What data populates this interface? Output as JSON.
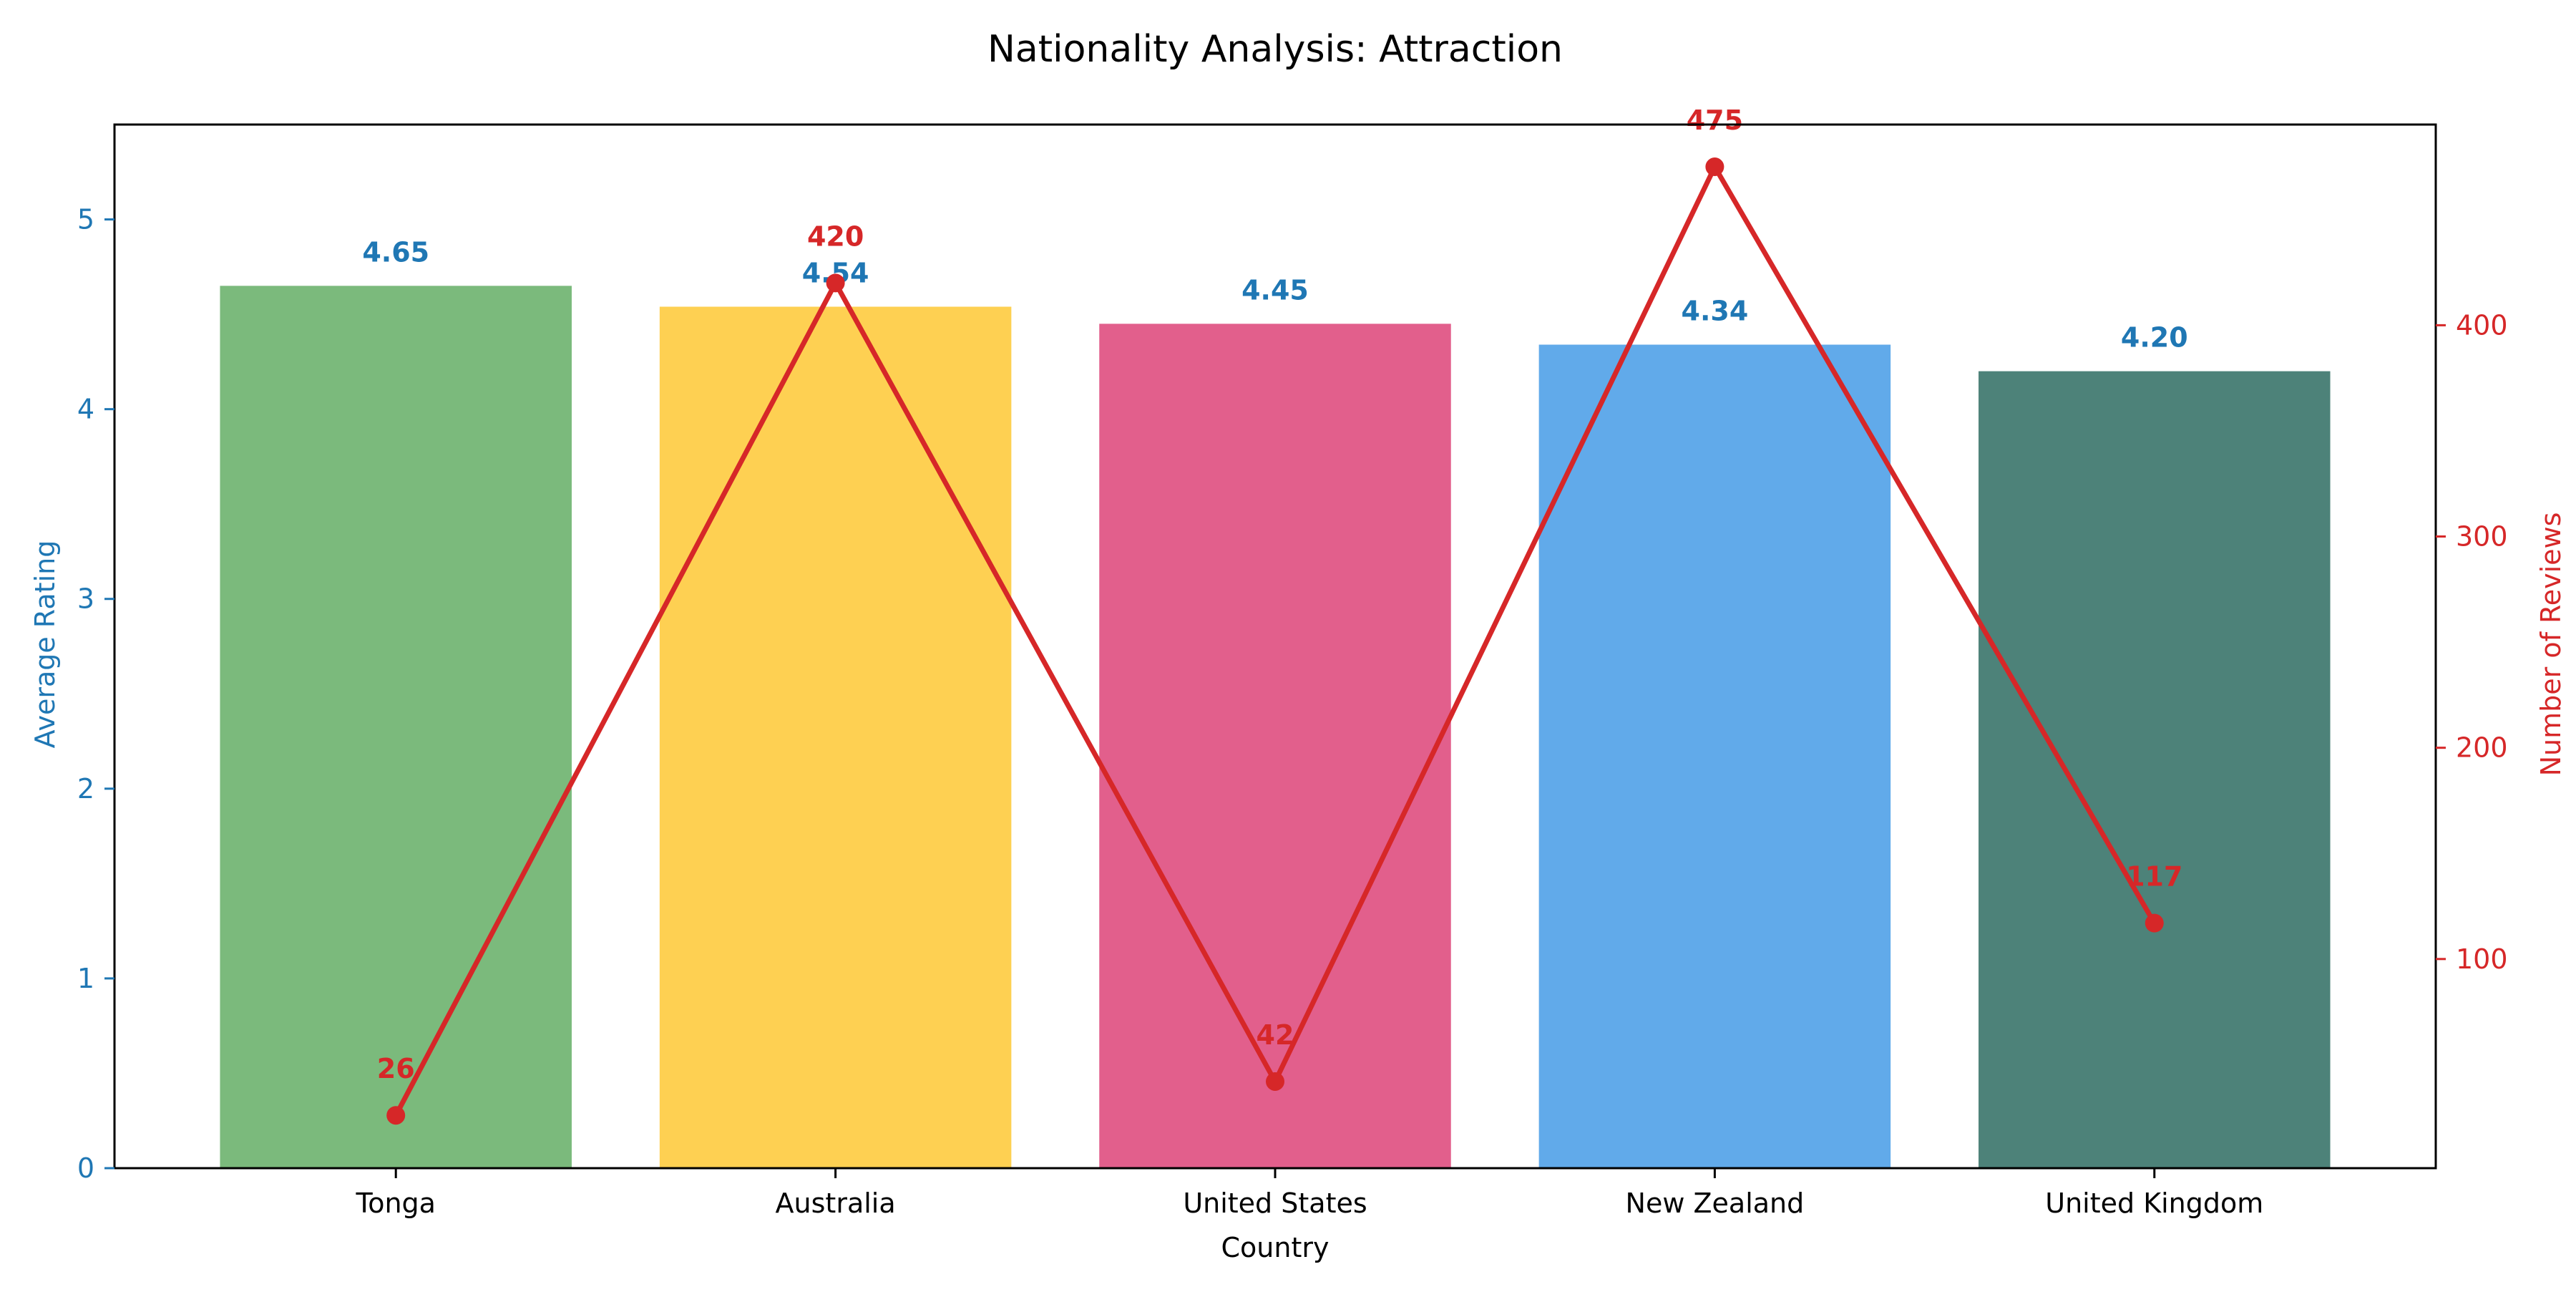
{
  "chart_data": {
    "type": "bar",
    "title": "Nationality Analysis: Attraction",
    "xlabel": "Country",
    "categories": [
      "Tonga",
      "Australia",
      "United States",
      "New Zealand",
      "United Kingdom"
    ],
    "series": [
      {
        "kind": "bar",
        "axis": "left",
        "ylabel": "Average Rating",
        "values": [
          4.65,
          4.54,
          4.45,
          4.34,
          4.2
        ],
        "value_labels": [
          "4.65",
          "4.54",
          "4.45",
          "4.34",
          "4.20"
        ],
        "colors": [
          "#7bba7c",
          "#fed052",
          "#e25f8c",
          "#61aaea",
          "#4d8279"
        ],
        "label_color": "#1f77b4"
      },
      {
        "kind": "line",
        "axis": "right",
        "ylabel": "Number of Reviews",
        "values": [
          26,
          420,
          42,
          475,
          117
        ],
        "value_labels": [
          "26",
          "420",
          "42",
          "475",
          "117"
        ],
        "color": "#d62728"
      }
    ],
    "y_left": {
      "lim": [
        0,
        5.5
      ],
      "ticks": [
        0,
        1,
        2,
        3,
        4,
        5
      ],
      "color": "#1f77b4"
    },
    "y_right": {
      "lim": [
        1,
        495
      ],
      "ticks": [
        100,
        200,
        300,
        400
      ],
      "color": "#d62728"
    },
    "grid": false,
    "legend": "none"
  }
}
